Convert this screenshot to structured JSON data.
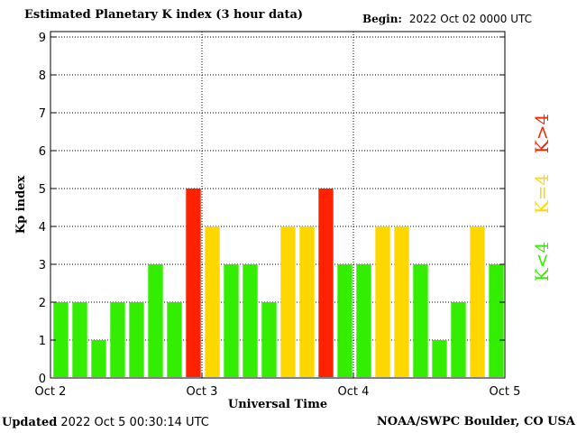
{
  "header": {
    "title": "Estimated Planetary K index (3 hour data)",
    "begin_label": "Begin:",
    "begin_value": "2022 Oct 02 0000 UTC"
  },
  "footer": {
    "updated_label": "Updated",
    "updated_value": "2022 Oct  5 00:30:14 UTC",
    "credit": "NOAA/SWPC Boulder, CO USA"
  },
  "legend": [
    {
      "label": "K<4",
      "color": "#33ee00"
    },
    {
      "label": "K=4",
      "color": "#ffd700"
    },
    {
      "label": "K>4",
      "color": "#ff2200"
    }
  ],
  "chart_data": {
    "type": "bar",
    "title": "Estimated Planetary K index (3 hour data)",
    "xlabel": "Universal Time",
    "ylabel": "Kp index",
    "ylim": [
      0,
      9
    ],
    "yticks": [
      "0",
      "1",
      "2",
      "3",
      "4",
      "5",
      "6",
      "7",
      "8",
      "9"
    ],
    "xticks": [
      "Oct 2",
      "Oct 3",
      "Oct 4",
      "Oct 5"
    ],
    "grid": true,
    "values": [
      2,
      2,
      1,
      2,
      2,
      3,
      2,
      5,
      4,
      3,
      3,
      2,
      4,
      4,
      5,
      3,
      3,
      4,
      4,
      3,
      1,
      2,
      4,
      3
    ],
    "colors": {
      "below": "#33ee00",
      "equal": "#ffd700",
      "above": "#ff2200"
    }
  }
}
